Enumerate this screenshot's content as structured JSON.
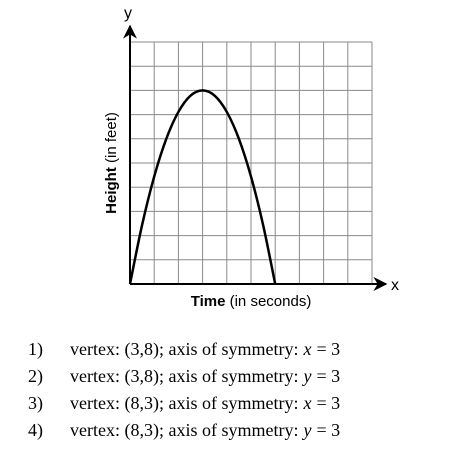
{
  "chart_data": {
    "type": "line",
    "y_axis_letter": "y",
    "x_axis_letter": "x",
    "xlabel": [
      "Time",
      "(in seconds)"
    ],
    "ylabel": [
      "Height",
      "(in feet)"
    ],
    "x": [
      0,
      0.5,
      1,
      1.5,
      2,
      2.5,
      3,
      3.5,
      4,
      4.5,
      5,
      5.5,
      6
    ],
    "values": [
      0,
      2.44,
      4.44,
      6,
      7.11,
      7.78,
      8,
      7.78,
      7.11,
      6,
      4.44,
      2.44,
      0
    ],
    "color": "#000000",
    "xlim": [
      0,
      10
    ],
    "ylim": [
      0,
      10
    ],
    "grid": true
  },
  "choices": [
    {
      "number": "1)",
      "text": "vertex: (3,8); axis of symmetry:",
      "variable": "x",
      "equation": "= 3"
    },
    {
      "number": "2)",
      "text": "vertex: (3,8); axis of symmetry:",
      "variable": "y",
      "equation": "= 3"
    },
    {
      "number": "3)",
      "text": "vertex: (8,3); axis of symmetry:",
      "variable": "x",
      "equation": "= 3"
    },
    {
      "number": "4)",
      "text": "vertex: (8,3); axis of symmetry:",
      "variable": "y",
      "equation": "= 3"
    }
  ]
}
